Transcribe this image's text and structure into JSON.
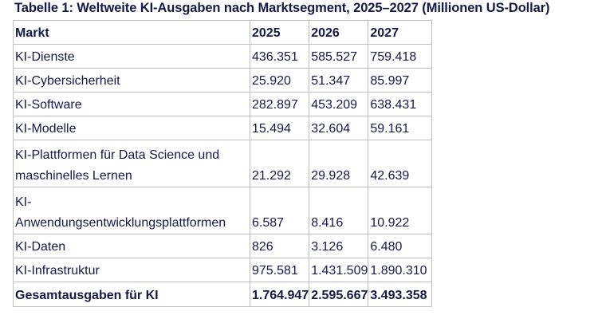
{
  "caption": "Tabelle 1: Weltweite KI-Ausgaben nach Marktsegment, 2025–2027 (Millionen US-Dollar)",
  "table": {
    "headers": [
      "Markt",
      "2025",
      "2026",
      "2027"
    ],
    "rows": [
      {
        "market": "KI-Dienste",
        "y2025": "436.351",
        "y2026": "585.527",
        "y2027": "759.418"
      },
      {
        "market": "KI-Cybersicherheit",
        "y2025": "25.920",
        "y2026": "51.347",
        "y2027": "85.997"
      },
      {
        "market": "KI-Software",
        "y2025": "282.897",
        "y2026": "453.209",
        "y2027": "638.431"
      },
      {
        "market": "KI-Modelle",
        "y2025": "15.494",
        "y2026": "32.604",
        "y2027": "59.161"
      },
      {
        "market_line1": "KI-Plattformen für Data Science und",
        "market_line2": "maschinelles Lernen",
        "y2025": "21.292",
        "y2026": "29.928",
        "y2027": "42.639"
      },
      {
        "market_line1": "KI-",
        "market_line2": "Anwendungsentwicklungsplattformen",
        "y2025": "6.587",
        "y2026": "8.416",
        "y2027": "10.922"
      },
      {
        "market": "KI-Daten",
        "y2025": "826",
        "y2026": "3.126",
        "y2027": "6.480"
      },
      {
        "market": "KI-Infrastruktur",
        "y2025": "975.581",
        "y2026": "1.431.509",
        "y2027": "1.890.310"
      }
    ],
    "total": {
      "market": "Gesamtausgaben für KI",
      "y2025": "1.764.947",
      "y2026": "2.595.667",
      "y2027": "3.493.358"
    }
  }
}
